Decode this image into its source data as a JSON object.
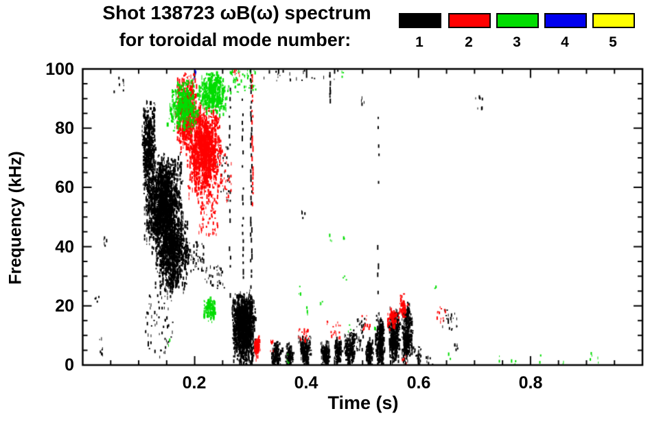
{
  "header": {
    "title": "Shot 138723 ωB(ω) spectrum",
    "subtitle": "for toroidal mode number:"
  },
  "legend": {
    "items": [
      {
        "label": "1",
        "color": "#000000"
      },
      {
        "label": "2",
        "color": "#ff0000"
      },
      {
        "label": "3",
        "color": "#00dd00"
      },
      {
        "label": "4",
        "color": "#0000ee"
      },
      {
        "label": "5",
        "color": "#ffff00"
      }
    ]
  },
  "chart_data": {
    "type": "scatter",
    "title": "Shot 138723 ωB(ω) spectrum",
    "subtitle": "for toroidal mode number:",
    "xlabel": "Time (s)",
    "ylabel": "Frequency (kHz)",
    "xlim": [
      0,
      1.0
    ],
    "ylim": [
      0,
      100
    ],
    "xticks_major": [
      0.2,
      0.4,
      0.6,
      0.8
    ],
    "xtick_labels": [
      "0.2",
      "0.4",
      "0.6",
      "0.8"
    ],
    "xtick_minor_step": 0.05,
    "yticks_major": [
      100,
      80,
      60,
      40,
      20,
      0
    ],
    "ytick_labels": [
      "100",
      "80",
      "60",
      "40",
      "20",
      "0"
    ],
    "ytick_minor_step": 5,
    "grid": false,
    "legend_position": "top-right",
    "series": [
      {
        "name": "toroidal mode n=1",
        "color": "#000000",
        "clusters": [
          {
            "shape": "dots",
            "t": [
              0.02,
              0.028
            ],
            "f": [
              21,
              25
            ],
            "n": 5
          },
          {
            "shape": "dots",
            "t": [
              0.036,
              0.042
            ],
            "f": [
              40,
              44
            ],
            "n": 5
          },
          {
            "shape": "dots",
            "t": [
              0.028,
              0.035
            ],
            "f": [
              4,
              11
            ],
            "n": 8
          },
          {
            "shape": "dots",
            "t": [
              0.055,
              0.075
            ],
            "f": [
              92,
              98
            ],
            "n": 7
          },
          {
            "shape": "blob",
            "t": [
              0.104,
              0.13
            ],
            "f": [
              60,
              90
            ],
            "n": 280
          },
          {
            "shape": "blob",
            "t": [
              0.106,
              0.178
            ],
            "f": [
              40,
              72
            ],
            "n": 1000
          },
          {
            "shape": "blob",
            "t": [
              0.128,
              0.19
            ],
            "f": [
              25,
              52
            ],
            "n": 600
          },
          {
            "shape": "dots",
            "t": [
              0.108,
              0.16
            ],
            "f": [
              3,
              24
            ],
            "n": 60
          },
          {
            "shape": "dots",
            "t": [
              0.185,
              0.215
            ],
            "f": [
              32,
              42
            ],
            "n": 45
          },
          {
            "shape": "dots",
            "t": [
              0.215,
              0.252
            ],
            "f": [
              26,
              34
            ],
            "n": 35
          },
          {
            "shape": "dots",
            "t": [
              0.24,
              0.262
            ],
            "f": [
              55,
              75
            ],
            "n": 30
          },
          {
            "shape": "vstreak",
            "t": 0.262,
            "f": [
              18,
              100
            ],
            "n": 26
          },
          {
            "shape": "blob",
            "t": [
              0.265,
              0.308
            ],
            "f": [
              1,
              26
            ],
            "n": 800
          },
          {
            "shape": "vstreak",
            "t": 0.285,
            "f": [
              30,
              95
            ],
            "n": 26
          },
          {
            "shape": "vstreak",
            "t": 0.3,
            "f": [
              2,
              100
            ],
            "n": 55
          },
          {
            "shape": "dots",
            "t": [
              0.295,
              0.455
            ],
            "f": [
              95,
              100
            ],
            "n": 22
          },
          {
            "shape": "vstreak",
            "t": 0.441,
            "f": [
              90,
              100
            ],
            "n": 10
          },
          {
            "shape": "blob",
            "t": [
              0.335,
              0.356
            ],
            "f": [
              0,
              9
            ],
            "n": 70
          },
          {
            "shape": "blob",
            "t": [
              0.36,
              0.376
            ],
            "f": [
              0,
              8
            ],
            "n": 55
          },
          {
            "shape": "blob",
            "t": [
              0.384,
              0.406
            ],
            "f": [
              1,
              11
            ],
            "n": 100
          },
          {
            "shape": "dots",
            "t": [
              0.39,
              0.396
            ],
            "f": [
              49,
              53
            ],
            "n": 4
          },
          {
            "shape": "blob",
            "t": [
              0.424,
              0.442
            ],
            "f": [
              0,
              9
            ],
            "n": 80
          },
          {
            "shape": "blob",
            "t": [
              0.446,
              0.462
            ],
            "f": [
              0,
              10
            ],
            "n": 65
          },
          {
            "shape": "blob",
            "t": [
              0.465,
              0.487
            ],
            "f": [
              0,
              13
            ],
            "n": 95
          },
          {
            "shape": "dots",
            "t": [
              0.488,
              0.503
            ],
            "f": [
              4,
              16
            ],
            "n": 35
          },
          {
            "shape": "dots",
            "t": [
              0.497,
              0.503
            ],
            "f": [
              88,
              92
            ],
            "n": 4
          },
          {
            "shape": "blob",
            "t": [
              0.504,
              0.518
            ],
            "f": [
              0,
              10
            ],
            "n": 70
          },
          {
            "shape": "blob",
            "t": [
              0.52,
              0.54
            ],
            "f": [
              0,
              18
            ],
            "n": 170
          },
          {
            "shape": "vstreak",
            "t": 0.527,
            "f": [
              22,
              90
            ],
            "n": 22
          },
          {
            "shape": "blob",
            "t": [
              0.544,
              0.566
            ],
            "f": [
              0,
              21
            ],
            "n": 200
          },
          {
            "shape": "blob",
            "t": [
              0.568,
              0.589
            ],
            "f": [
              0,
              22
            ],
            "n": 180
          },
          {
            "shape": "dots",
            "t": [
              0.59,
              0.603
            ],
            "f": [
              0,
              7
            ],
            "n": 25
          },
          {
            "shape": "dots",
            "t": [
              0.61,
              0.625
            ],
            "f": [
              0,
              4
            ],
            "n": 8
          },
          {
            "shape": "dots",
            "t": [
              0.64,
              0.668
            ],
            "f": [
              12,
              19
            ],
            "n": 22
          },
          {
            "shape": "dots",
            "t": [
              0.663,
              0.67
            ],
            "f": [
              5,
              9
            ],
            "n": 6
          },
          {
            "shape": "dots",
            "t": [
              0.7,
              0.714
            ],
            "f": [
              86,
              92
            ],
            "n": 7
          }
        ]
      },
      {
        "name": "toroidal mode n=2",
        "color": "#ff0000",
        "clusters": [
          {
            "shape": "blob",
            "t": [
              0.163,
              0.205
            ],
            "f": [
              72,
              100
            ],
            "n": 350
          },
          {
            "shape": "blob",
            "t": [
              0.186,
              0.248
            ],
            "f": [
              56,
              90
            ],
            "n": 750
          },
          {
            "shape": "dots",
            "t": [
              0.205,
              0.24
            ],
            "f": [
              44,
              58
            ],
            "n": 70
          },
          {
            "shape": "dots",
            "t": [
              0.248,
              0.266
            ],
            "f": [
              55,
              72
            ],
            "n": 25
          },
          {
            "shape": "dots",
            "t": [
              0.268,
              0.28
            ],
            "f": [
              96,
              100
            ],
            "n": 8
          },
          {
            "shape": "vstreak",
            "t": 0.302,
            "f": [
              55,
              100
            ],
            "n": 26
          },
          {
            "shape": "blob",
            "t": [
              0.305,
              0.317
            ],
            "f": [
              4,
              11
            ],
            "n": 45
          },
          {
            "shape": "dots",
            "t": [
              0.333,
              0.34
            ],
            "f": [
              5,
              9
            ],
            "n": 6
          },
          {
            "shape": "dots",
            "t": [
              0.383,
              0.403
            ],
            "f": [
              8,
              13
            ],
            "n": 22
          },
          {
            "shape": "dots",
            "t": [
              0.435,
              0.46
            ],
            "f": [
              9,
              15
            ],
            "n": 18
          },
          {
            "shape": "dots",
            "t": [
              0.498,
              0.512
            ],
            "f": [
              12,
              17
            ],
            "n": 10
          },
          {
            "shape": "blob",
            "t": [
              0.542,
              0.56
            ],
            "f": [
              12,
              20
            ],
            "n": 35
          },
          {
            "shape": "blob",
            "t": [
              0.56,
              0.58
            ],
            "f": [
              16,
              25
            ],
            "n": 30
          },
          {
            "shape": "dots",
            "t": [
              0.57,
              0.578
            ],
            "f": [
              0,
              4
            ],
            "n": 5
          },
          {
            "shape": "dots",
            "t": [
              0.63,
              0.648
            ],
            "f": [
              15,
              20
            ],
            "n": 12
          }
        ]
      },
      {
        "name": "toroidal mode n=3",
        "color": "#00dd00",
        "clusters": [
          {
            "shape": "blob",
            "t": [
              0.148,
              0.212
            ],
            "f": [
              79,
              97
            ],
            "n": 230
          },
          {
            "shape": "blob",
            "t": [
              0.204,
              0.258
            ],
            "f": [
              85,
              100
            ],
            "n": 260
          },
          {
            "shape": "dots",
            "t": [
              0.256,
              0.308
            ],
            "f": [
              92,
              100
            ],
            "n": 50
          },
          {
            "shape": "blob",
            "t": [
              0.214,
              0.238
            ],
            "f": [
              16,
              24
            ],
            "n": 70
          },
          {
            "shape": "dots",
            "t": [
              0.152,
              0.158
            ],
            "f": [
              6,
              9
            ],
            "n": 2
          },
          {
            "shape": "dots",
            "t": [
              0.362,
              0.368
            ],
            "f": [
              1,
              4
            ],
            "n": 3
          },
          {
            "shape": "dots",
            "t": [
              0.384,
              0.39
            ],
            "f": [
              24,
              27
            ],
            "n": 3
          },
          {
            "shape": "dots",
            "t": [
              0.398,
              0.404
            ],
            "f": [
              17,
              20
            ],
            "n": 3
          },
          {
            "shape": "dots",
            "t": [
              0.422,
              0.428
            ],
            "f": [
              19,
              22
            ],
            "n": 3
          },
          {
            "shape": "dots",
            "t": [
              0.44,
              0.446
            ],
            "f": [
              42,
              45
            ],
            "n": 3
          },
          {
            "shape": "dots",
            "t": [
              0.461,
              0.466
            ],
            "f": [
              97,
              100
            ],
            "n": 3
          },
          {
            "shape": "dots",
            "t": [
              0.464,
              0.47
            ],
            "f": [
              41,
              44
            ],
            "n": 2
          },
          {
            "shape": "dots",
            "t": [
              0.464,
              0.47
            ],
            "f": [
              29,
              32
            ],
            "n": 3
          },
          {
            "shape": "dots",
            "t": [
              0.472,
              0.478
            ],
            "f": [
              11,
              14
            ],
            "n": 3
          },
          {
            "shape": "dots",
            "t": [
              0.518,
              0.524
            ],
            "f": [
              11,
              13
            ],
            "n": 2
          },
          {
            "shape": "dots",
            "t": [
              0.628,
              0.634
            ],
            "f": [
              25,
              28
            ],
            "n": 2
          },
          {
            "shape": "dots",
            "t": [
              0.652,
              0.658
            ],
            "f": [
              2,
              5
            ],
            "n": 2
          },
          {
            "shape": "dots",
            "t": [
              0.742,
              0.748
            ],
            "f": [
              1,
              4
            ],
            "n": 2
          },
          {
            "shape": "dots",
            "t": [
              0.764,
              0.774
            ],
            "f": [
              0,
              3
            ],
            "n": 4
          },
          {
            "shape": "dots",
            "t": [
              0.813,
              0.819
            ],
            "f": [
              1,
              4
            ],
            "n": 2
          },
          {
            "shape": "dots",
            "t": [
              0.857,
              0.862
            ],
            "f": [
              0,
              3
            ],
            "n": 2
          },
          {
            "shape": "dots",
            "t": [
              0.903,
              0.909
            ],
            "f": [
              2,
              5
            ],
            "n": 3
          },
          {
            "shape": "dots",
            "t": [
              0.918,
              0.923
            ],
            "f": [
              0,
              3
            ],
            "n": 2
          }
        ]
      },
      {
        "name": "toroidal mode n=4",
        "color": "#0000ee",
        "clusters": [
          {
            "shape": "dots",
            "t": [
              0.198,
              0.206
            ],
            "f": [
              97,
              100
            ],
            "n": 4
          }
        ]
      },
      {
        "name": "toroidal mode n=5",
        "color": "#ffff00",
        "clusters": []
      }
    ]
  }
}
